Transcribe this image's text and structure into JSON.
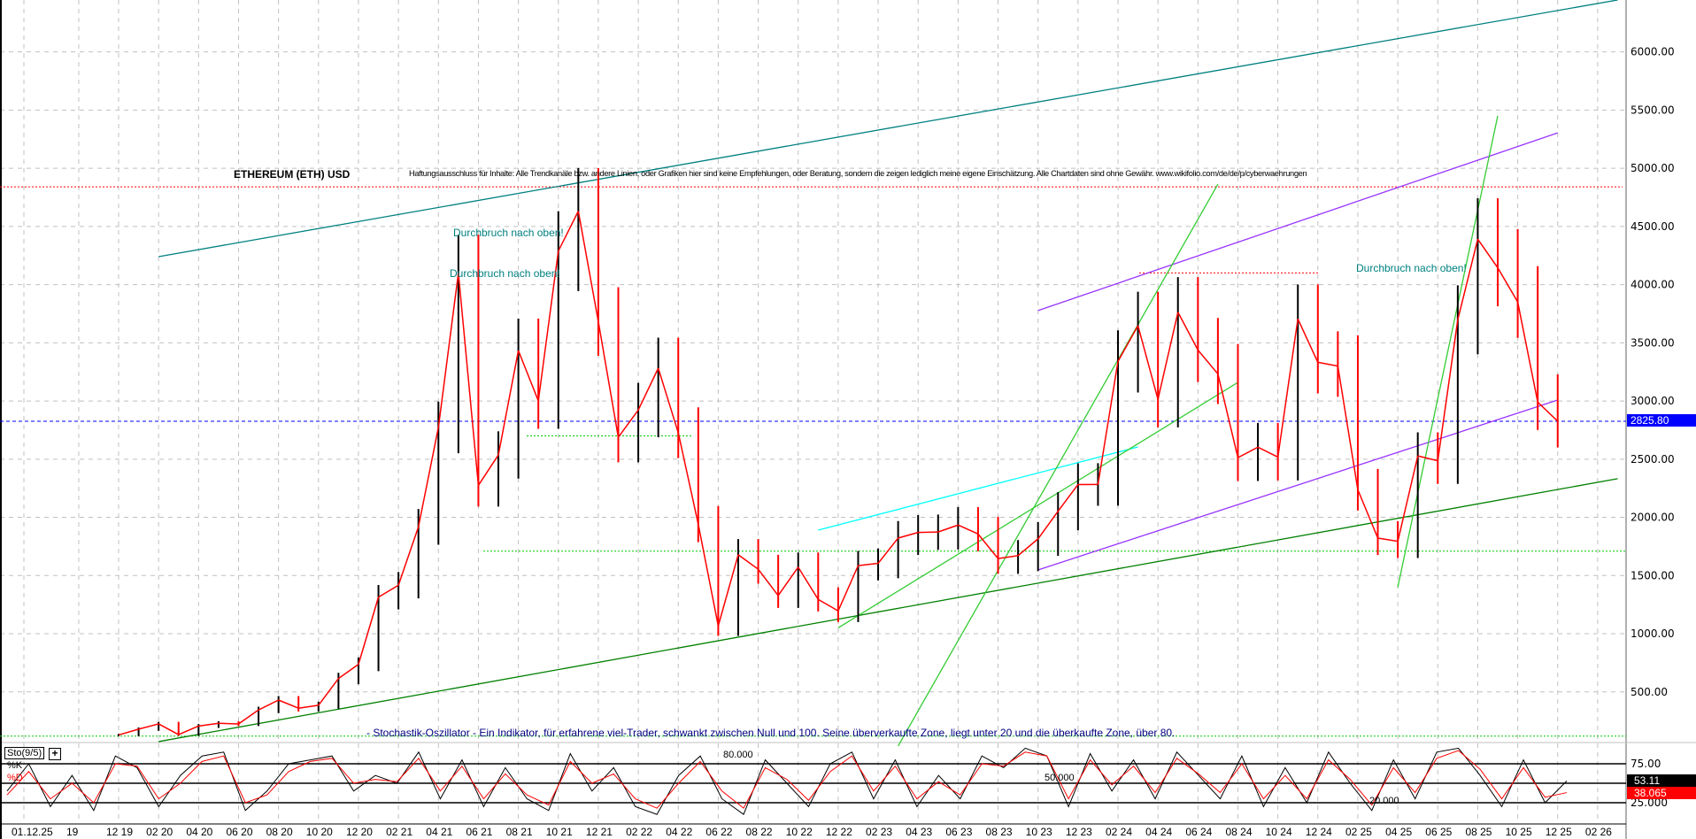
{
  "chart_data": {
    "type": "line",
    "title": "ETHEREUM (ETH) USD",
    "disclaimer": "Haftungsausschluss für Inhalte: Alle Trendkanäle bzw. andere Linien, oder Grafiken hier sind keine Empfehlungen, oder Beratung, sondern die zeigen lediglich meine eigene Einschätzung. Alle Chartdaten sind ohne Gewähr.  www.wikifolio.com/de/de/p/cyberwaehrungen",
    "indicator_note": "- Stochastik-Oszillator - Ein Indikator, für erfahrene viel-Trader, schwankt zwischen Null und 100. Seine überverkaufte Zone, liegt unter 20 und die überkaufte Zone, über 80.",
    "annotations": [
      {
        "text": "Durchbruch nach oben!",
        "date": "2021-05",
        "price": 4560
      },
      {
        "text": "Durchbruch nach oben!",
        "date": "2021-05",
        "price": 4000
      },
      {
        "text": "Durchbruch nach oben!",
        "date": "2025-06",
        "price": 4080
      }
    ],
    "ylim": [
      0,
      6400
    ],
    "y_ticks": [
      "6000.00",
      "5500.00",
      "5000.00",
      "4500.00",
      "4000.00",
      "3500.00",
      "3000.00",
      "2500.00",
      "2000.00",
      "1500.00",
      "1000.00",
      "500.00"
    ],
    "last_price": "2825.80",
    "grid": true,
    "start": "2019-12",
    "series": [
      {
        "type": "price",
        "values": [
          130,
          180,
          225,
          133,
          207,
          230,
          225,
          345,
          430,
          360,
          385,
          615,
          737,
          1314,
          1417,
          1918,
          2773,
          4100,
          2275,
          2536,
          3433,
          3001,
          4288,
          4631,
          3683,
          2688,
          2922,
          3282,
          2727,
          1942,
          1067,
          1679,
          1554,
          1328,
          1572,
          1295,
          1196,
          1585,
          1605,
          1822,
          1870,
          1874,
          1934,
          1857,
          1646,
          1671,
          1815,
          2052,
          2282,
          2283,
          3340,
          3647,
          3014,
          3763,
          3438,
          3232,
          2513,
          2603,
          2518,
          3705,
          3332,
          3300,
          2237,
          1822,
          1794,
          2528,
          2486,
          3698,
          4391,
          4145,
          3850,
          2990,
          2826
        ]
      }
    ],
    "trendlines": [
      {
        "color": "#008080",
        "from": [
          "2020-02",
          4240
        ],
        "to": [
          "2026-03",
          6446
        ]
      },
      {
        "color": "#008000",
        "from": [
          "2020-02",
          73
        ],
        "to": [
          "2026-03",
          2332
        ]
      },
      {
        "color": "#9933ff",
        "from": [
          "2023-10",
          3777
        ],
        "to": [
          "2025-12",
          5304
        ]
      },
      {
        "color": "#9933ff",
        "from": [
          "2023-10",
          1548
        ],
        "to": [
          "2025-12",
          3008
        ]
      },
      {
        "color": "#00ffff",
        "from": [
          "2022-11",
          1890
        ],
        "to": [
          "2024-03",
          2605
        ]
      },
      {
        "color": "#33cc33",
        "from": [
          "2023-03",
          35
        ],
        "to": [
          "2024-07",
          4863
        ]
      },
      {
        "color": "#33cc33",
        "from": [
          "2022-12",
          1050
        ],
        "to": [
          "2024-08",
          3160
        ]
      },
      {
        "color": "#33cc33",
        "from": [
          "2025-04",
          1400
        ],
        "to": [
          "2025-09",
          5450
        ]
      }
    ],
    "levels": [
      {
        "color": "#ff0000",
        "price": 4840,
        "style": "dotted"
      },
      {
        "color": "#ff0000",
        "price": 4100,
        "style": "dotted"
      },
      {
        "color": "#00cc00",
        "price": 1710,
        "style": "dotted"
      },
      {
        "color": "#00cc00",
        "price": 2700,
        "style": "dotted"
      },
      {
        "color": "#00cc00",
        "price": 120,
        "style": "dotted"
      },
      {
        "color": "#0000ff",
        "price": 2825.8,
        "style": "dashed"
      }
    ],
    "stochastic": {
      "label": "Sto(9/5)",
      "k_label": "%K",
      "d_label": "%D",
      "levels": [
        "80.000",
        "50.000",
        "20.000"
      ],
      "y_ticks": [
        "75.00",
        "25.000"
      ],
      "k_value": "53.11",
      "d_value": "38.065",
      "k": [
        40,
        75,
        20,
        60,
        15,
        85,
        70,
        20,
        60,
        85,
        90,
        15,
        40,
        75,
        80,
        85,
        40,
        60,
        50,
        90,
        30,
        80,
        20,
        70,
        30,
        15,
        88,
        40,
        70,
        20,
        10,
        60,
        85,
        30,
        10,
        80,
        50,
        20,
        75,
        90,
        30,
        80,
        20,
        60,
        30,
        85,
        70,
        95,
        85,
        20,
        88,
        40,
        80,
        30,
        90,
        60,
        30,
        85,
        20,
        70,
        25,
        90,
        50,
        15,
        80,
        30,
        90,
        95,
        60,
        20,
        80,
        25,
        53
      ],
      "d": [
        35,
        65,
        30,
        50,
        25,
        75,
        72,
        30,
        50,
        78,
        85,
        25,
        35,
        65,
        78,
        82,
        50,
        55,
        52,
        82,
        40,
        72,
        30,
        62,
        35,
        22,
        78,
        50,
        62,
        30,
        18,
        50,
        78,
        40,
        18,
        70,
        55,
        28,
        65,
        85,
        40,
        72,
        30,
        52,
        35,
        75,
        72,
        90,
        85,
        30,
        80,
        48,
        72,
        38,
        82,
        62,
        38,
        75,
        30,
        60,
        30,
        80,
        55,
        22,
        70,
        38,
        82,
        92,
        68,
        30,
        70,
        32,
        38
      ]
    },
    "x_ticks": [
      "01.12.25",
      "19",
      "12 19",
      "02 20",
      "04 20",
      "06 20",
      "08 20",
      "10 20",
      "12 20",
      "02 21",
      "04 21",
      "06 21",
      "08 21",
      "10 21",
      "12 21",
      "02 22",
      "04 22",
      "06 22",
      "08 22",
      "10 22",
      "12 22",
      "02 23",
      "04 23",
      "06 23",
      "08 23",
      "10 23",
      "12 23",
      "02 24",
      "04 24",
      "06 24",
      "08 24",
      "10 24",
      "12 24",
      "02 25",
      "04 25",
      "06 25",
      "08 25",
      "10 25",
      "12 25",
      "02 26"
    ],
    "colors": {
      "up": "#000000",
      "down": "#ff0000",
      "grid": "#c0c0c0",
      "last_price_bg": "#0000ff",
      "k_bg": "#000000",
      "d_bg": "#ff0000"
    }
  }
}
